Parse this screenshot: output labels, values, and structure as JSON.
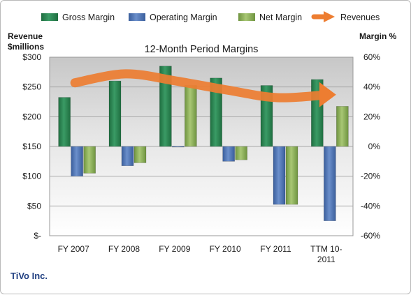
{
  "chart_data": {
    "type": "bar",
    "title": "12-Month Period Margins",
    "categories": [
      "FY 2007",
      "FY 2008",
      "FY 2009",
      "FY 2010",
      "FY 2011",
      "TTM 10-2011"
    ],
    "category_lines": [
      [
        "FY 2007"
      ],
      [
        "FY 2008"
      ],
      [
        "FY 2009"
      ],
      [
        "FY 2010"
      ],
      [
        "FY 2011"
      ],
      [
        "TTM 10-",
        "2011"
      ]
    ],
    "series": [
      {
        "name": "Gross Margin",
        "axis": "right",
        "color": "#2e8b57",
        "values": [
          33,
          44,
          54,
          46,
          41,
          45
        ]
      },
      {
        "name": "Operating Margin",
        "axis": "right",
        "color": "#4f76b8",
        "values": [
          -20,
          -13,
          0,
          -10,
          -39,
          -50
        ]
      },
      {
        "name": "Net Margin",
        "axis": "right",
        "color": "#8fb35a",
        "values": [
          -18,
          -11,
          41,
          -9,
          -39,
          27
        ]
      }
    ],
    "line_series": {
      "name": "Revenues",
      "axis": "left",
      "color": "#ed7d31",
      "values": [
        257,
        272,
        260,
        245,
        232,
        237
      ]
    },
    "left_axis": {
      "label_lines": [
        "Revenue",
        "$millions"
      ],
      "ylim": [
        0,
        300
      ],
      "ticks": [
        0,
        50,
        100,
        150,
        200,
        250,
        300
      ],
      "tick_labels": [
        "$-",
        "$50",
        "$100",
        "$150",
        "$200",
        "$250",
        "$300"
      ]
    },
    "right_axis": {
      "label": "Margin %",
      "ylim": [
        -60,
        60
      ],
      "ticks": [
        -60,
        -40,
        -20,
        0,
        20,
        40,
        60
      ],
      "tick_labels": [
        "-60%",
        "-40%",
        "-20%",
        "0%",
        "20%",
        "40%",
        "60%"
      ]
    },
    "legend": {
      "position": "top",
      "entries": [
        "Gross Margin",
        "Operating Margin",
        "Net Margin",
        "Revenues"
      ]
    },
    "grid": true,
    "footer": "TiVo Inc."
  },
  "colors": {
    "gross": "#2e8b57",
    "operating": "#4f76b8",
    "net": "#8fb35a",
    "revenue": "#ed7d31",
    "footer": "#1f3e80"
  }
}
